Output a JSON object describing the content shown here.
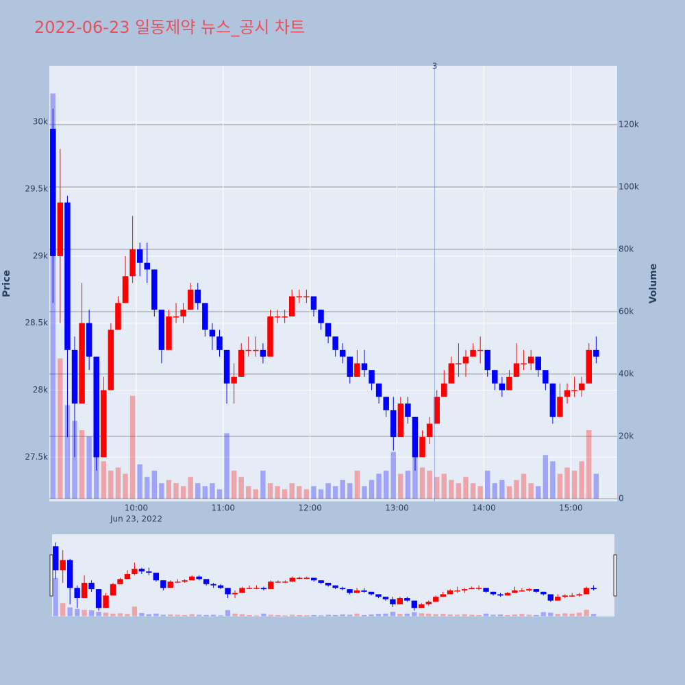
{
  "chart_data": {
    "type": "candlestick",
    "title": "2022-06-23 일동제약 뉴스_공시 차트",
    "ylabel": "Price",
    "y2label": "Volume",
    "date_label": "Jun 23, 2022",
    "increasing_color": "#ff0000",
    "decreasing_color": "#0000ff",
    "x": [
      "2022-06-23 09:00",
      "2022-06-23 09:05",
      "2022-06-23 09:10",
      "2022-06-23 09:15",
      "2022-06-23 09:20",
      "2022-06-23 09:25",
      "2022-06-23 09:30",
      "2022-06-23 09:35",
      "2022-06-23 09:40",
      "2022-06-23 09:45",
      "2022-06-23 09:50",
      "2022-06-23 09:55",
      "2022-06-23 10:00",
      "2022-06-23 10:05",
      "2022-06-23 10:10",
      "2022-06-23 10:15",
      "2022-06-23 10:20",
      "2022-06-23 10:25",
      "2022-06-23 10:30",
      "2022-06-23 10:35",
      "2022-06-23 10:40",
      "2022-06-23 10:45",
      "2022-06-23 10:50",
      "2022-06-23 10:55",
      "2022-06-23 11:00",
      "2022-06-23 11:05",
      "2022-06-23 11:10",
      "2022-06-23 11:15",
      "2022-06-23 11:20",
      "2022-06-23 11:25",
      "2022-06-23 11:30",
      "2022-06-23 11:35",
      "2022-06-23 11:40",
      "2022-06-23 11:45",
      "2022-06-23 11:50",
      "2022-06-23 11:55",
      "2022-06-23 12:00",
      "2022-06-23 12:05",
      "2022-06-23 12:10",
      "2022-06-23 12:15",
      "2022-06-23 12:20",
      "2022-06-23 12:25",
      "2022-06-23 12:30",
      "2022-06-23 12:35",
      "2022-06-23 12:40",
      "2022-06-23 12:45",
      "2022-06-23 12:50",
      "2022-06-23 12:55",
      "2022-06-23 13:00",
      "2022-06-23 13:05",
      "2022-06-23 13:10",
      "2022-06-23 13:15",
      "2022-06-23 13:20",
      "2022-06-23 13:25",
      "2022-06-23 13:30",
      "2022-06-23 13:35",
      "2022-06-23 13:40",
      "2022-06-23 13:45",
      "2022-06-23 13:50",
      "2022-06-23 13:55",
      "2022-06-23 14:00",
      "2022-06-23 14:05",
      "2022-06-23 14:10",
      "2022-06-23 14:15",
      "2022-06-23 14:20",
      "2022-06-23 14:25",
      "2022-06-23 14:30",
      "2022-06-23 14:35",
      "2022-06-23 14:40",
      "2022-06-23 14:45",
      "2022-06-23 14:50",
      "2022-06-23 14:55",
      "2022-06-23 15:00",
      "2022-06-23 15:05",
      "2022-06-23 15:10",
      "2022-06-23 15:15"
    ],
    "open": [
      29950,
      29000,
      29400,
      28300,
      27900,
      28500,
      28250,
      27500,
      28000,
      28450,
      28650,
      28850,
      29050,
      28950,
      28900,
      28600,
      28300,
      28550,
      28550,
      28600,
      28750,
      28650,
      28450,
      28400,
      28300,
      28050,
      28100,
      28300,
      28300,
      28300,
      28250,
      28550,
      28550,
      28550,
      28700,
      28700,
      28700,
      28600,
      28500,
      28400,
      28300,
      28250,
      28100,
      28200,
      28150,
      28050,
      27950,
      27850,
      27650,
      27900,
      27800,
      27500,
      27650,
      27750,
      27950,
      28050,
      28200,
      28200,
      28250,
      28300,
      28300,
      28150,
      28050,
      28000,
      28100,
      28200,
      28200,
      28250,
      28150,
      28050,
      27800,
      27950,
      28000,
      28000,
      28050,
      28300
    ],
    "high": [
      30100,
      29800,
      29450,
      28400,
      28800,
      28600,
      28250,
      28100,
      28500,
      28700,
      29000,
      29300,
      29100,
      29100,
      28900,
      28600,
      28600,
      28650,
      28650,
      28800,
      28800,
      28650,
      28500,
      28450,
      28300,
      28200,
      28350,
      28400,
      28400,
      28350,
      28600,
      28600,
      28600,
      28750,
      28750,
      28750,
      28700,
      28600,
      28500,
      28400,
      28350,
      28250,
      28300,
      28300,
      28150,
      28050,
      27950,
      27950,
      27950,
      27950,
      27800,
      27700,
      27800,
      28000,
      28150,
      28250,
      28350,
      28300,
      28350,
      28400,
      28300,
      28150,
      28100,
      28150,
      28350,
      28300,
      28300,
      28250,
      28150,
      28050,
      28050,
      28050,
      28100,
      28100,
      28350,
      28400
    ],
    "low": [
      28650,
      28500,
      27650,
      27500,
      27900,
      28150,
      27400,
      27500,
      28000,
      28450,
      28650,
      28800,
      28850,
      28800,
      28550,
      28200,
      28300,
      28500,
      28500,
      28600,
      28600,
      28400,
      28300,
      28250,
      27900,
      27900,
      28100,
      28250,
      28250,
      28200,
      28250,
      28500,
      28500,
      28550,
      28650,
      28650,
      28550,
      28450,
      28350,
      28250,
      28200,
      28050,
      28100,
      28100,
      28000,
      27900,
      27800,
      27550,
      27650,
      27750,
      27400,
      27500,
      27600,
      27750,
      27950,
      28050,
      28100,
      28100,
      28250,
      28200,
      28100,
      28000,
      27950,
      28000,
      28100,
      28150,
      28150,
      28100,
      28000,
      27750,
      27800,
      27900,
      27950,
      27950,
      28050,
      28200
    ],
    "close": [
      29000,
      29400,
      28300,
      27900,
      28500,
      28250,
      27500,
      28000,
      28450,
      28650,
      28850,
      29050,
      28950,
      28900,
      28600,
      28300,
      28550,
      28550,
      28600,
      28750,
      28650,
      28450,
      28400,
      28300,
      28050,
      28100,
      28300,
      28300,
      28300,
      28250,
      28550,
      28550,
      28550,
      28700,
      28700,
      28700,
      28600,
      28500,
      28400,
      28300,
      28250,
      28100,
      28200,
      28150,
      28050,
      27950,
      27850,
      27650,
      27900,
      27800,
      27500,
      27650,
      27750,
      27950,
      28050,
      28200,
      28200,
      28250,
      28300,
      28300,
      28150,
      28050,
      28000,
      28100,
      28200,
      28200,
      28250,
      28150,
      28050,
      27800,
      27950,
      28000,
      28000,
      28050,
      28300,
      28250
    ],
    "volume": [
      130000,
      45000,
      30000,
      25000,
      22000,
      20000,
      15000,
      12000,
      9000,
      10000,
      8000,
      33000,
      11000,
      7000,
      9000,
      5000,
      6000,
      5000,
      4000,
      7000,
      5000,
      4000,
      5000,
      3000,
      21000,
      9000,
      7000,
      4000,
      3000,
      9000,
      5000,
      4000,
      3000,
      5000,
      4000,
      3000,
      4000,
      3000,
      5000,
      4000,
      6000,
      5000,
      9000,
      4000,
      6000,
      8000,
      9000,
      15000,
      8000,
      9000,
      14000,
      10000,
      9000,
      7000,
      8000,
      6000,
      5000,
      7000,
      5000,
      4000,
      9000,
      5000,
      6000,
      4000,
      6000,
      8000,
      5000,
      4000,
      14000,
      12000,
      8000,
      10000,
      9000,
      12000,
      22000,
      8000
    ],
    "xlim": [
      "2022-06-23 09:00",
      "2022-06-23 15:32"
    ],
    "xticks": [
      {
        "value": "2022-06-23 10:00",
        "label": "10:00"
      },
      {
        "value": "2022-06-23 11:00",
        "label": "11:00"
      },
      {
        "value": "2022-06-23 12:00",
        "label": "12:00"
      },
      {
        "value": "2022-06-23 13:00",
        "label": "13:00"
      },
      {
        "value": "2022-06-23 14:00",
        "label": "14:00"
      },
      {
        "value": "2022-06-23 15:00",
        "label": "15:00"
      }
    ],
    "ylim": [
      27170,
      30420
    ],
    "yticks": [
      {
        "value": 27500,
        "label": "27.5k"
      },
      {
        "value": 28000,
        "label": "28k"
      },
      {
        "value": 28500,
        "label": "28.5k"
      },
      {
        "value": 29000,
        "label": "29k"
      },
      {
        "value": 29500,
        "label": "29.5k"
      },
      {
        "value": 30000,
        "label": "30k"
      }
    ],
    "y2lim": [
      -880,
      138900
    ],
    "y2ticks": [
      0,
      {
        "value": 20000,
        "label": "20k"
      },
      {
        "value": 40000,
        "label": "40k"
      },
      {
        "value": 60000,
        "label": "60k"
      },
      {
        "value": 80000,
        "label": "80k"
      },
      {
        "value": 100000,
        "label": "100k"
      },
      {
        "value": 120000,
        "label": "120k"
      }
    ],
    "annotations": [
      {
        "x": "2022-06-23 13:26",
        "text": "3"
      }
    ]
  }
}
